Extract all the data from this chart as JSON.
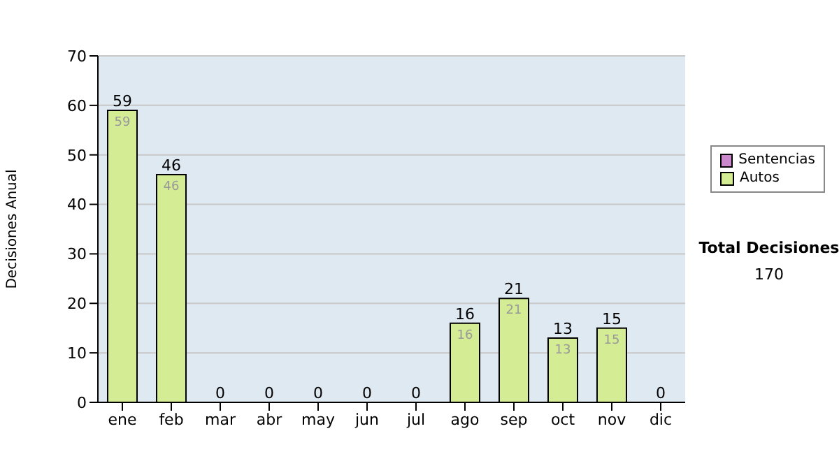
{
  "chart_data": {
    "type": "bar",
    "ylabel": "Decisiones Anual",
    "categories": [
      "ene",
      "feb",
      "mar",
      "abr",
      "may",
      "jun",
      "jul",
      "ago",
      "sep",
      "oct",
      "nov",
      "dic"
    ],
    "series": [
      {
        "name": "Sentencias",
        "color": "#cc88cc",
        "values": [
          0,
          0,
          0,
          0,
          0,
          0,
          0,
          0,
          0,
          0,
          0,
          0
        ]
      },
      {
        "name": "Autos",
        "color": "#d4ec94",
        "values": [
          59,
          46,
          0,
          0,
          0,
          0,
          0,
          16,
          21,
          13,
          15,
          0
        ],
        "value_labels": [
          "59",
          "46",
          null,
          null,
          null,
          null,
          null,
          "16",
          "21",
          "13",
          "15",
          null
        ]
      }
    ],
    "stacked": true,
    "totals": [
      "59",
      "46",
      "0",
      "0",
      "0",
      "0",
      "0",
      "16",
      "21",
      "13",
      "15",
      "0"
    ],
    "ylim": [
      0,
      70
    ],
    "yticks": [
      0,
      10,
      20,
      30,
      40,
      50,
      60,
      70
    ],
    "grid": "y",
    "legend": "right",
    "annotations": [
      "Total Decisiones",
      "170"
    ]
  }
}
